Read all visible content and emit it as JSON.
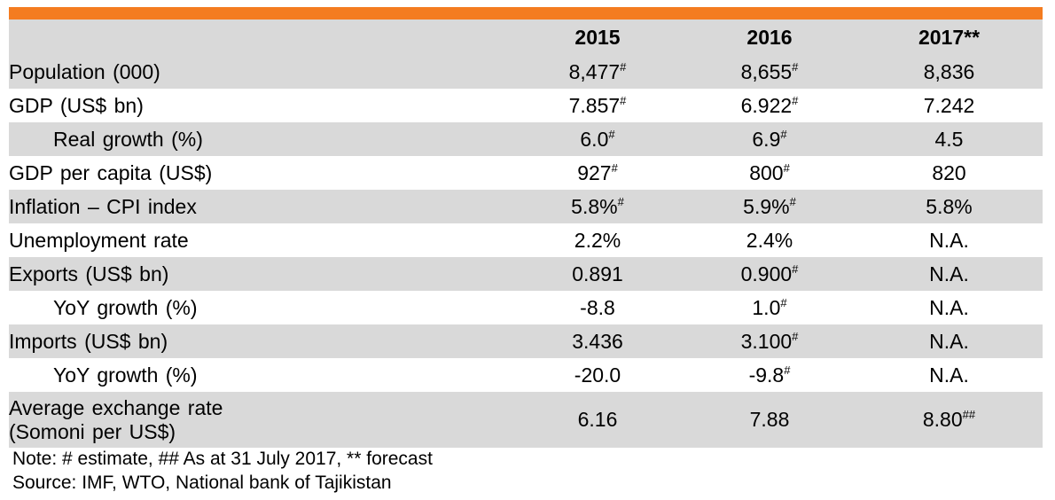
{
  "table": {
    "header": {
      "label": "",
      "years": [
        "2015",
        "2016",
        "2017**"
      ]
    },
    "rows": [
      {
        "label": "Population  (000)",
        "values": [
          {
            "v": "8,477",
            "sup": "#"
          },
          {
            "v": "8,655",
            "sup": "#"
          },
          {
            "v": "8,836",
            "sup": ""
          }
        ]
      },
      {
        "label": "GDP  (US$ bn)",
        "values": [
          {
            "v": "7.857",
            "sup": "#"
          },
          {
            "v": "6.922",
            "sup": "#"
          },
          {
            "v": "7.242",
            "sup": ""
          }
        ]
      },
      {
        "label": "Real growth (%)",
        "values": [
          {
            "v": "6.0",
            "sup": "#"
          },
          {
            "v": "6.9",
            "sup": "#"
          },
          {
            "v": "4.5",
            "sup": ""
          }
        ]
      },
      {
        "label": "GDP per capita (US$)",
        "values": [
          {
            "v": "927",
            "sup": "#"
          },
          {
            "v": "800",
            "sup": "#"
          },
          {
            "v": "820",
            "sup": ""
          }
        ]
      },
      {
        "label": "Inflation – CPI index",
        "values": [
          {
            "v": "5.8%",
            "sup": "#"
          },
          {
            "v": "5.9%",
            "sup": "#"
          },
          {
            "v": "5.8%",
            "sup": ""
          }
        ]
      },
      {
        "label": "Unemployment rate",
        "values": [
          {
            "v": "2.2%",
            "sup": ""
          },
          {
            "v": "2.4%",
            "sup": ""
          },
          {
            "v": "N.A.",
            "sup": ""
          }
        ]
      },
      {
        "label": "Exports  (US$ bn)",
        "values": [
          {
            "v": "0.891",
            "sup": ""
          },
          {
            "v": "0.900",
            "sup": "#"
          },
          {
            "v": "N.A.",
            "sup": ""
          }
        ]
      },
      {
        "label": "YoY growth (%)",
        "values": [
          {
            "v": "-8.8",
            "sup": ""
          },
          {
            "v": "1.0",
            "sup": "#"
          },
          {
            "v": "N.A.",
            "sup": ""
          }
        ]
      },
      {
        "label": "Imports  (US$ bn)",
        "values": [
          {
            "v": "3.436",
            "sup": ""
          },
          {
            "v": "3.100",
            "sup": "#"
          },
          {
            "v": "N.A.",
            "sup": ""
          }
        ]
      },
      {
        "label": "YoY growth (%)",
        "values": [
          {
            "v": "-20.0",
            "sup": ""
          },
          {
            "v": "-9.8",
            "sup": "#"
          },
          {
            "v": "N.A.",
            "sup": ""
          }
        ]
      },
      {
        "label": "Average exchange rate",
        "label2": "(Somoni per US$)",
        "values": [
          {
            "v": "6.16",
            "sup": ""
          },
          {
            "v": "7.88",
            "sup": ""
          },
          {
            "v": "8.80",
            "sup": "##"
          }
        ]
      }
    ]
  },
  "notes": {
    "note": "Note: # estimate, ## As at 31 July 2017, ** forecast",
    "source": "Source: IMF, WTO, National bank of Tajikistan"
  },
  "colors": {
    "accent_bar": "#F47C20",
    "row_shade": "#D9D9D9"
  }
}
